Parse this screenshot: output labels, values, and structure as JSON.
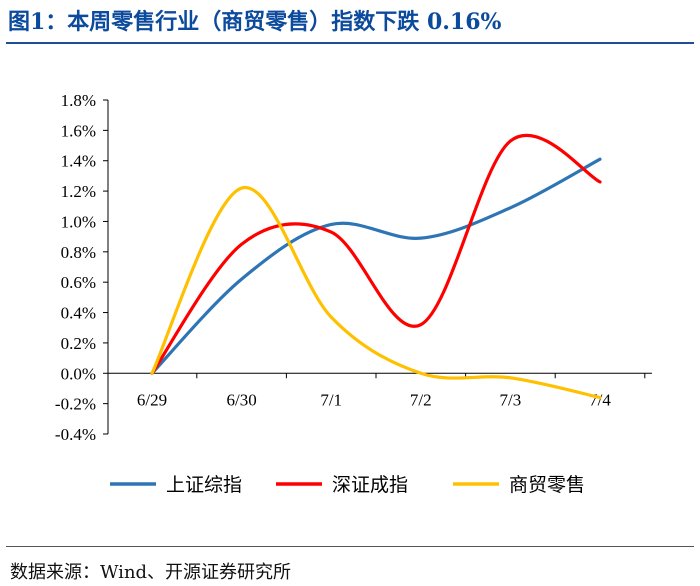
{
  "header": {
    "title": "图1：本周零售行业（商贸零售）指数下跌 0.16%"
  },
  "footer": {
    "source": "数据来源：Wind、开源证券研究所"
  },
  "chart_data": {
    "type": "line",
    "title": "",
    "xlabel": "",
    "ylabel": "",
    "categories": [
      "6/29",
      "6/30",
      "7/1",
      "7/2",
      "7/3",
      "7/4"
    ],
    "ylim": [
      -0.4,
      1.8
    ],
    "yticks": [
      1.8,
      1.6,
      1.4,
      1.2,
      1.0,
      0.8,
      0.6,
      0.4,
      0.2,
      0.0,
      -0.2,
      -0.4
    ],
    "yticklabels": [
      "1.8%",
      "1.6%",
      "1.4%",
      "1.2%",
      "1.0%",
      "0.8%",
      "0.6%",
      "0.4%",
      "0.2%",
      "0.0%",
      "-0.2%",
      "-0.4%"
    ],
    "grid": false,
    "legend": "bottom",
    "series": [
      {
        "name": "上证综指",
        "color": "#2e75b6",
        "values": [
          0.0,
          0.62,
          0.98,
          0.89,
          1.09,
          1.41
        ]
      },
      {
        "name": "深证成指",
        "color": "#ff0000",
        "values": [
          0.0,
          0.85,
          0.93,
          0.32,
          1.53,
          1.26
        ]
      },
      {
        "name": "商贸零售",
        "color": "#ffc000",
        "values": [
          0.0,
          1.22,
          0.37,
          0.0,
          -0.03,
          -0.16
        ]
      }
    ]
  }
}
